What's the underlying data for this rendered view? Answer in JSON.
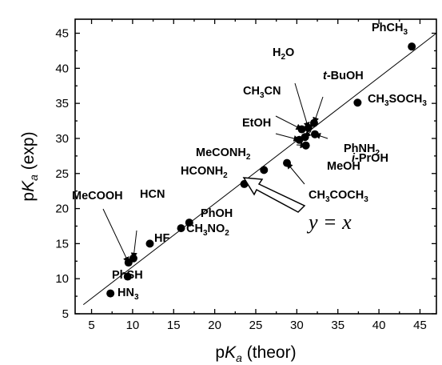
{
  "chart_data": {
    "type": "scatter",
    "title": "",
    "xlabel": {
      "prefix": "p",
      "italic": "K",
      "sub": "a",
      "suffix": " (theor)"
    },
    "ylabel": {
      "prefix": "p",
      "italic": "K",
      "sub": "a",
      "suffix": " (exp)"
    },
    "xlim": [
      3,
      47
    ],
    "ylim": [
      5,
      47
    ],
    "xticks": [
      5,
      10,
      15,
      20,
      25,
      30,
      35,
      40,
      45
    ],
    "yticks": [
      5,
      10,
      15,
      20,
      25,
      30,
      35,
      40,
      45
    ],
    "grid": false,
    "reference_line": {
      "label": "y = x",
      "from": [
        4,
        6.3
      ],
      "to": [
        47,
        45
      ]
    },
    "points": [
      {
        "label": [
          [
            "HN",
            false
          ],
          [
            "3",
            true
          ]
        ],
        "x": 7.3,
        "y": 7.9
      },
      {
        "label": [
          [
            "PhSH",
            false
          ]
        ],
        "x": 9.4,
        "y": 10.3
      },
      {
        "label": [
          [
            "MeCOOH",
            false
          ]
        ],
        "x": 9.5,
        "y": 12.3
      },
      {
        "label": [
          [
            "HCN",
            false
          ]
        ],
        "x": 10.1,
        "y": 12.9
      },
      {
        "label": [
          [
            "HF",
            false
          ]
        ],
        "x": 12.1,
        "y": 15.0
      },
      {
        "label": [
          [
            "CH",
            false
          ],
          [
            "3",
            true
          ],
          [
            "NO",
            false
          ],
          [
            "2",
            true
          ]
        ],
        "x": 15.9,
        "y": 17.2
      },
      {
        "label": [
          [
            "PhOH",
            false
          ]
        ],
        "x": 16.9,
        "y": 18.0
      },
      {
        "label": [
          [
            "HCONH",
            false
          ],
          [
            "2",
            true
          ]
        ],
        "x": 23.6,
        "y": 23.5
      },
      {
        "label": [
          [
            "MeCONH",
            false
          ],
          [
            "2",
            true
          ]
        ],
        "x": 26.0,
        "y": 25.5
      },
      {
        "label": [
          [
            "CH",
            false
          ],
          [
            "3",
            true
          ],
          [
            "COCH",
            false
          ],
          [
            "3",
            true
          ]
        ],
        "x": 28.8,
        "y": 26.5
      },
      {
        "label": [
          [
            "EtOH",
            false
          ]
        ],
        "x": 30.3,
        "y": 29.8
      },
      {
        "label": [
          [
            "CH",
            false
          ],
          [
            "3",
            true
          ],
          [
            "CN",
            false
          ]
        ],
        "x": 30.6,
        "y": 31.3
      },
      {
        "label": [
          [
            "i",
            "italic"
          ],
          [
            "-PrOH",
            false
          ]
        ],
        "x": 31.0,
        "y": 30.2
      },
      {
        "label": [
          [
            "MeOH",
            false
          ]
        ],
        "x": 31.1,
        "y": 29.0
      },
      {
        "label": [
          [
            "H",
            false
          ],
          [
            "2",
            true
          ],
          [
            "O",
            false
          ]
        ],
        "x": 31.4,
        "y": 31.5
      },
      {
        "label": [
          [
            "t",
            "italic"
          ],
          [
            "-BuOH",
            false
          ]
        ],
        "x": 32.1,
        "y": 32.2
      },
      {
        "label": [
          [
            "PhNH",
            false
          ],
          [
            "2",
            true
          ]
        ],
        "x": 32.2,
        "y": 30.6
      },
      {
        "label": [
          [
            "CH",
            false
          ],
          [
            "3",
            true
          ],
          [
            "SOCH",
            false
          ],
          [
            "3",
            true
          ]
        ],
        "x": 37.4,
        "y": 35.1
      },
      {
        "label": [
          [
            "PhCH",
            false
          ],
          [
            "3",
            true
          ]
        ],
        "x": 44.0,
        "y": 43.1
      }
    ]
  }
}
